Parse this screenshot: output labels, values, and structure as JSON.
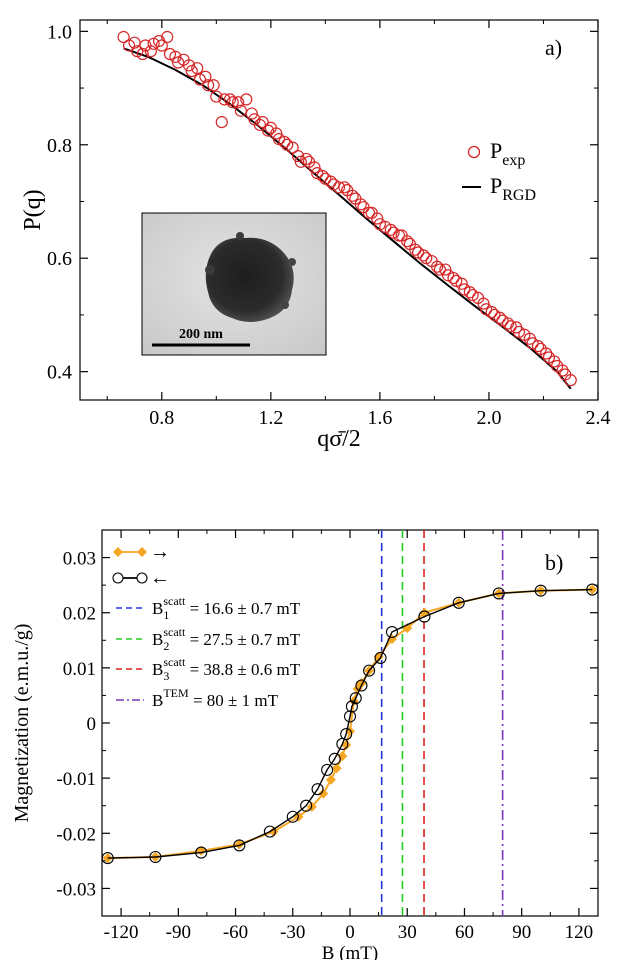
{
  "chart_data": [
    {
      "type": "scatter",
      "panel_label": "a)",
      "xlabel": "qσ̄/2",
      "ylabel": "P(q)",
      "xlim": [
        0.5,
        2.4
      ],
      "ylim": [
        0.35,
        1.02
      ],
      "xticks": [
        0.8,
        1.2,
        1.6,
        2.0,
        2.4
      ],
      "xtick_labels": [
        "0.8",
        "1.2",
        "1.6",
        "2.0",
        "2.4"
      ],
      "yticks": [
        0.4,
        0.6,
        0.8,
        1.0
      ],
      "ytick_labels": [
        "0.4",
        "0.6",
        "0.8",
        "1.0"
      ],
      "legend": [
        {
          "label": "P",
          "sub": "exp",
          "style": "circle",
          "color": "#d62728"
        },
        {
          "label": "P",
          "sub": "RGD",
          "style": "line",
          "color": "#000000"
        }
      ],
      "inset": {
        "scalebar_label": "200 nm"
      },
      "series": [
        {
          "name": "P_exp",
          "style": "circle",
          "color": "#d62728",
          "x": [
            0.66,
            0.68,
            0.7,
            0.71,
            0.73,
            0.74,
            0.76,
            0.77,
            0.79,
            0.8,
            0.82,
            0.83,
            0.85,
            0.86,
            0.88,
            0.9,
            0.91,
            0.93,
            0.94,
            0.96,
            0.97,
            0.99,
            1.0,
            1.02,
            1.03,
            1.05,
            1.06,
            1.08,
            1.09,
            1.11,
            1.13,
            1.14,
            1.16,
            1.17,
            1.19,
            1.2,
            1.22,
            1.23,
            1.25,
            1.26,
            1.28,
            1.3,
            1.31,
            1.33,
            1.34,
            1.36,
            1.37,
            1.39,
            1.4,
            1.42,
            1.43,
            1.45,
            1.47,
            1.48,
            1.5,
            1.51,
            1.53,
            1.54,
            1.56,
            1.57,
            1.59,
            1.6,
            1.62,
            1.64,
            1.65,
            1.67,
            1.68,
            1.7,
            1.71,
            1.73,
            1.74,
            1.76,
            1.77,
            1.79,
            1.81,
            1.82,
            1.84,
            1.85,
            1.87,
            1.88,
            1.9,
            1.91,
            1.93,
            1.94,
            1.96,
            1.98,
            1.99,
            2.01,
            2.02,
            2.04,
            2.05,
            2.07,
            2.08,
            2.1,
            2.11,
            2.13,
            2.15,
            2.16,
            2.18,
            2.19,
            2.21,
            2.22,
            2.24,
            2.25,
            2.27,
            2.28,
            2.3
          ],
          "y": [
            0.99,
            0.975,
            0.98,
            0.965,
            0.96,
            0.975,
            0.965,
            0.978,
            0.983,
            0.975,
            0.99,
            0.96,
            0.955,
            0.945,
            0.95,
            0.94,
            0.93,
            0.935,
            0.915,
            0.92,
            0.905,
            0.905,
            0.885,
            0.84,
            0.88,
            0.88,
            0.875,
            0.875,
            0.86,
            0.88,
            0.855,
            0.845,
            0.835,
            0.84,
            0.825,
            0.83,
            0.82,
            0.81,
            0.805,
            0.8,
            0.795,
            0.78,
            0.77,
            0.775,
            0.77,
            0.76,
            0.75,
            0.745,
            0.74,
            0.735,
            0.73,
            0.725,
            0.725,
            0.72,
            0.71,
            0.705,
            0.695,
            0.69,
            0.68,
            0.68,
            0.67,
            0.66,
            0.655,
            0.65,
            0.645,
            0.64,
            0.64,
            0.63,
            0.625,
            0.615,
            0.61,
            0.605,
            0.6,
            0.595,
            0.585,
            0.58,
            0.58,
            0.57,
            0.565,
            0.56,
            0.555,
            0.545,
            0.54,
            0.535,
            0.53,
            0.52,
            0.51,
            0.505,
            0.5,
            0.495,
            0.49,
            0.485,
            0.48,
            0.478,
            0.47,
            0.465,
            0.458,
            0.45,
            0.445,
            0.44,
            0.432,
            0.425,
            0.418,
            0.41,
            0.402,
            0.395,
            0.385
          ]
        },
        {
          "name": "P_RGD",
          "style": "line",
          "color": "#000000",
          "x": [
            0.66,
            0.75,
            0.85,
            0.95,
            1.05,
            1.15,
            1.25,
            1.35,
            1.45,
            1.55,
            1.65,
            1.75,
            1.85,
            1.95,
            2.05,
            2.15,
            2.25,
            2.3
          ],
          "y": [
            0.97,
            0.955,
            0.932,
            0.905,
            0.872,
            0.835,
            0.795,
            0.753,
            0.712,
            0.67,
            0.63,
            0.59,
            0.552,
            0.515,
            0.479,
            0.442,
            0.4,
            0.37
          ]
        }
      ]
    },
    {
      "type": "line",
      "panel_label": "b)",
      "xlabel": "B (mT)",
      "ylabel": "Magnetization (e.m.u./g)",
      "xlim": [
        -130,
        130
      ],
      "ylim": [
        -0.035,
        0.035
      ],
      "xticks": [
        -120,
        -90,
        -60,
        -30,
        0,
        30,
        60,
        90,
        120
      ],
      "xtick_labels": [
        "-120",
        "-90",
        "-60",
        "-30",
        "0",
        "30",
        "60",
        "90",
        "120"
      ],
      "yticks": [
        -0.03,
        -0.02,
        -0.01,
        0,
        0.01,
        0.02,
        0.03
      ],
      "ytick_labels": [
        "-0.03",
        "-0.02",
        "-0.01",
        "0",
        "0.01",
        "0.02",
        "0.03"
      ],
      "legend": [
        {
          "symbol": "diamond",
          "color": "#f5a623",
          "arrow": "→"
        },
        {
          "symbol": "circle",
          "color": "#000000",
          "arrow": "←"
        },
        {
          "pre": "B",
          "sub": "1",
          "sup": "scatt",
          "text": " = 16.6 ± 0.7 mT",
          "dash": "dashed",
          "color": "#2233dd"
        },
        {
          "pre": "B",
          "sub": "2",
          "sup": "scatt",
          "text": " = 27.5 ± 0.7 mT",
          "dash": "dashed",
          "color": "#22cc22"
        },
        {
          "pre": "B",
          "sub": "3",
          "sup": "scatt",
          "text": " = 38.8 ± 0.6 mT",
          "dash": "dashed",
          "color": "#dd2222"
        },
        {
          "pre": "B",
          "sub": "",
          "sup": "TEM",
          "text": " = 80 ± 1 mT",
          "dash": "dashdot",
          "color": "#7733bb"
        }
      ],
      "vlines": [
        {
          "x": 16.6,
          "color": "#2233dd",
          "dash": "dashed"
        },
        {
          "x": 27.5,
          "color": "#22cc22",
          "dash": "dashed"
        },
        {
          "x": 38.8,
          "color": "#dd2222",
          "dash": "dashed"
        },
        {
          "x": 80,
          "color": "#7733bb",
          "dash": "dashdot"
        }
      ],
      "series": [
        {
          "name": "→",
          "symbol": "diamond",
          "color": "#f5a623",
          "x": [
            -127,
            -102,
            -78,
            -58,
            -40,
            -27,
            -20,
            -14,
            -10,
            -7,
            -4,
            -2,
            0,
            2,
            4,
            6,
            10,
            15,
            22,
            30,
            39,
            57,
            78,
            100,
            127
          ],
          "y": [
            -0.0245,
            -0.0243,
            -0.0232,
            -0.022,
            -0.0197,
            -0.017,
            -0.0152,
            -0.0128,
            -0.0103,
            -0.0082,
            -0.006,
            -0.004,
            -0.0015,
            0.004,
            0.0062,
            0.0072,
            0.0095,
            0.012,
            0.0152,
            0.0172,
            0.02,
            0.0218,
            0.0235,
            0.024,
            0.0242
          ]
        },
        {
          "name": "←",
          "symbol": "circle",
          "color": "#000000",
          "x": [
            127,
            100,
            78,
            57,
            39,
            22,
            16,
            10,
            6,
            3,
            1,
            0,
            -2,
            -4,
            -8,
            -12,
            -17,
            -23,
            -30,
            -42,
            -58,
            -78,
            -102,
            -127
          ],
          "y": [
            0.0242,
            0.024,
            0.0235,
            0.0218,
            0.0193,
            0.0165,
            0.0118,
            0.0095,
            0.0068,
            0.0045,
            0.003,
            0.0012,
            -0.002,
            -0.0038,
            -0.0065,
            -0.0085,
            -0.012,
            -0.015,
            -0.017,
            -0.0197,
            -0.0222,
            -0.0235,
            -0.0243,
            -0.0245
          ]
        }
      ]
    }
  ]
}
